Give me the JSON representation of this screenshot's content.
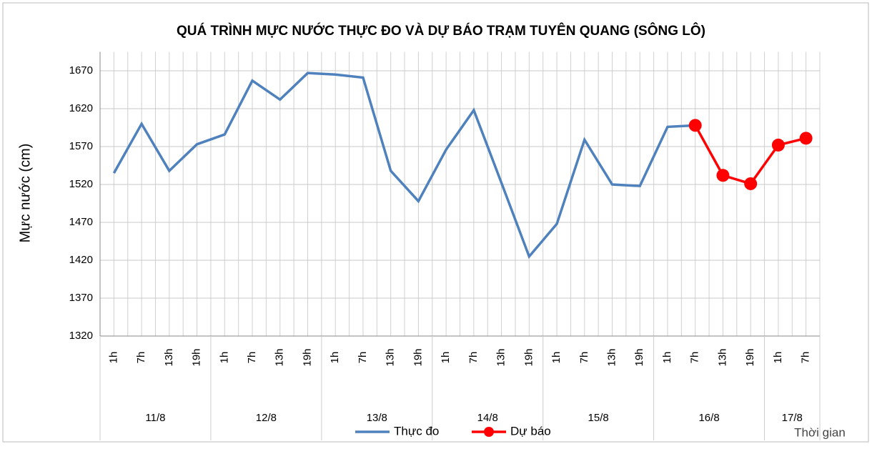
{
  "chart_data": {
    "type": "line",
    "title": "QUÁ TRÌNH MỰC NƯỚC THỰC ĐO VÀ DỰ BÁO TRẠM TUYÊN QUANG (SÔNG LÔ)",
    "y_label": "Mực nước (cm)",
    "x_label": "Thời gian",
    "categories": [
      "1h",
      "7h",
      "13h",
      "19h",
      "1h",
      "7h",
      "13h",
      "19h",
      "1h",
      "7h",
      "13h",
      "19h",
      "1h",
      "7h",
      "13h",
      "19h",
      "1h",
      "7h",
      "13h",
      "19h",
      "1h",
      "7h",
      "13h",
      "19h",
      "1h",
      "7h"
    ],
    "groups": [
      "11/8",
      "12/8",
      "13/8",
      "14/8",
      "15/8",
      "16/8",
      "17/8"
    ],
    "series": [
      {
        "name": "Thực đo",
        "color": "#4f81bd",
        "marker": false,
        "values": [
          1535,
          1600,
          1538,
          1573,
          1586,
          1657,
          1632,
          1667,
          1665,
          1661,
          1538,
          1498,
          1566,
          1618,
          1522,
          1425,
          1468,
          1579,
          1520,
          1518,
          1596,
          1598,
          null,
          null,
          null,
          null
        ]
      },
      {
        "name": "Dự báo",
        "color": "#ff0000",
        "marker": true,
        "values": [
          null,
          null,
          null,
          null,
          null,
          null,
          null,
          null,
          null,
          null,
          null,
          null,
          null,
          null,
          null,
          null,
          null,
          null,
          null,
          null,
          null,
          1598,
          1532,
          1521,
          1572,
          1581
        ]
      }
    ],
    "ylim": [
      1320,
      1695
    ],
    "yticks": [
      1320,
      1370,
      1420,
      1470,
      1520,
      1570,
      1620,
      1670
    ],
    "grid": true,
    "legend": "bottom"
  }
}
